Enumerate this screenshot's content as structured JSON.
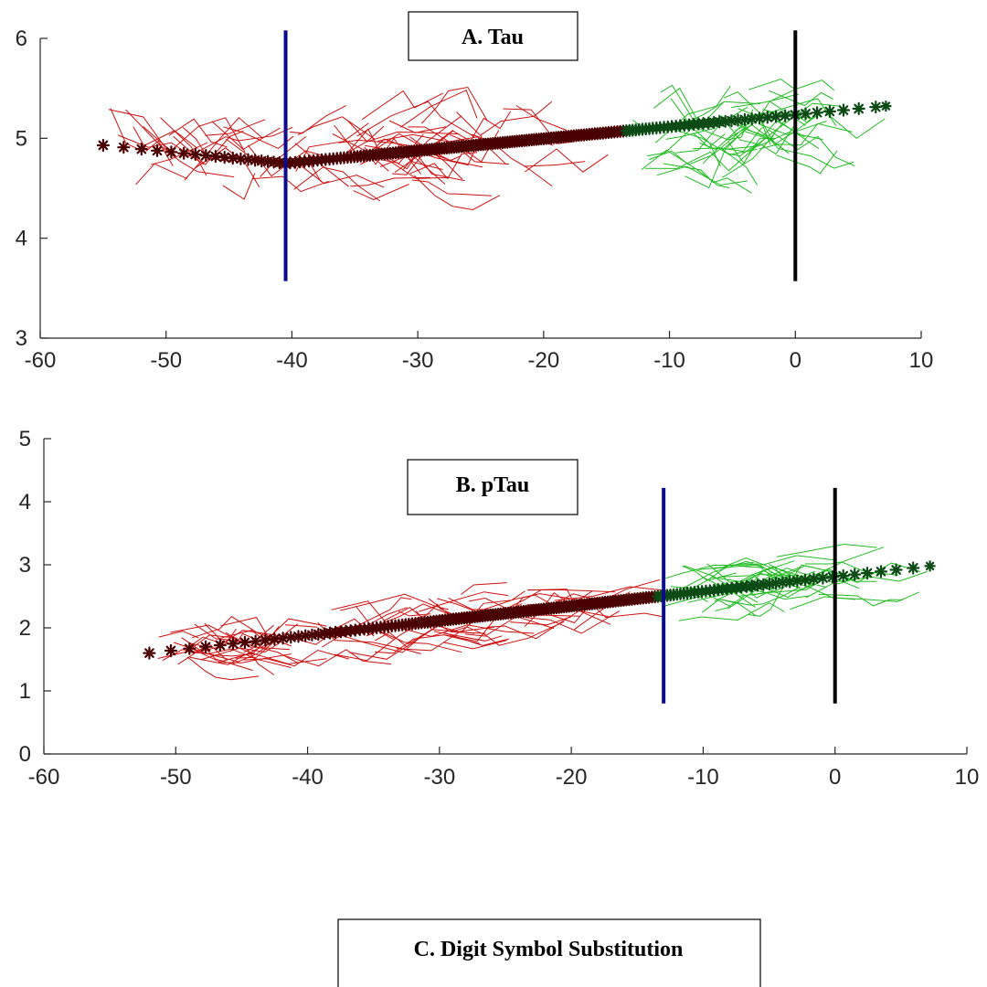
{
  "chart_data": [
    {
      "type": "scatter",
      "title": "A. Tau",
      "xlim": [
        -60,
        10
      ],
      "ylim": [
        3,
        6
      ],
      "xticks": [
        -60,
        -50,
        -40,
        -30,
        -20,
        -10,
        0,
        10
      ],
      "yticks": [
        3,
        4,
        5,
        6
      ],
      "x_tick_labels": [
        "-60",
        "-50",
        "-40",
        "-30",
        "-20",
        "-10",
        "0",
        "10"
      ],
      "y_tick_labels": [
        "3",
        "4",
        "5",
        "6"
      ],
      "vlines": [
        {
          "x": -40.5,
          "y": [
            3.57,
            6.08
          ],
          "color": "#0a0a8c"
        },
        {
          "x": 0,
          "y": [
            3.57,
            6.08
          ],
          "color": "#000000"
        }
      ],
      "trend": {
        "x_start": -55,
        "x_end": 7.2,
        "knot": -40.5,
        "y_start": 4.93,
        "y_knot": 4.75,
        "slope_after": 0.012,
        "red_color": "#4a0000",
        "green_color": "#0b4a14",
        "switch_at": -13.5
      },
      "spaghetti": {
        "red": {
          "x": [
            -55,
            -17
          ],
          "y": [
            3.7,
            5.85
          ],
          "center_slope": 0.012,
          "spread": 0.38,
          "count": 70,
          "color": "#cc1111"
        },
        "green": {
          "x": [
            -13,
            3
          ],
          "y": [
            4.0,
            6.05
          ],
          "center": 5.05,
          "spread": 0.45,
          "count": 45,
          "color": "#22bb22"
        }
      }
    },
    {
      "type": "scatter",
      "title": "B. pTau",
      "xlim": [
        -60,
        10
      ],
      "ylim": [
        0,
        5
      ],
      "xticks": [
        -60,
        -50,
        -40,
        -30,
        -20,
        -10,
        0,
        10
      ],
      "yticks": [
        0,
        1,
        2,
        3,
        4,
        5
      ],
      "x_tick_labels": [
        "-60",
        "-50",
        "-40",
        "-30",
        "-20",
        "-10",
        "0",
        "10"
      ],
      "y_tick_labels": [
        "0",
        "1",
        "2",
        "3",
        "4",
        "5"
      ],
      "vlines": [
        {
          "x": -13,
          "y": [
            0.8,
            4.22
          ],
          "color": "#0a0a8c"
        },
        {
          "x": 0,
          "y": [
            0.8,
            4.22
          ],
          "color": "#000000"
        }
      ],
      "trend": {
        "x_start": -52,
        "x_end": 7.2,
        "y_start": 1.6,
        "slope": 0.0233,
        "red_color": "#4a0000",
        "green_color": "#0b4a14",
        "switch_at": -13.5
      },
      "spaghetti": {
        "red": {
          "x": [
            -52,
            -15
          ],
          "y": [
            1.0,
            2.97
          ],
          "center_slope": 0.0233,
          "spread": 0.4,
          "count": 80,
          "color": "#cc1111"
        },
        "green": {
          "x": [
            -13,
            3
          ],
          "y": [
            1.4,
            4.25
          ],
          "center_slope": 0.0233,
          "spread": 0.45,
          "count": 45,
          "color": "#22bb22"
        }
      }
    }
  ],
  "panel_c": {
    "title": "C. Digit Symbol Substitution"
  }
}
